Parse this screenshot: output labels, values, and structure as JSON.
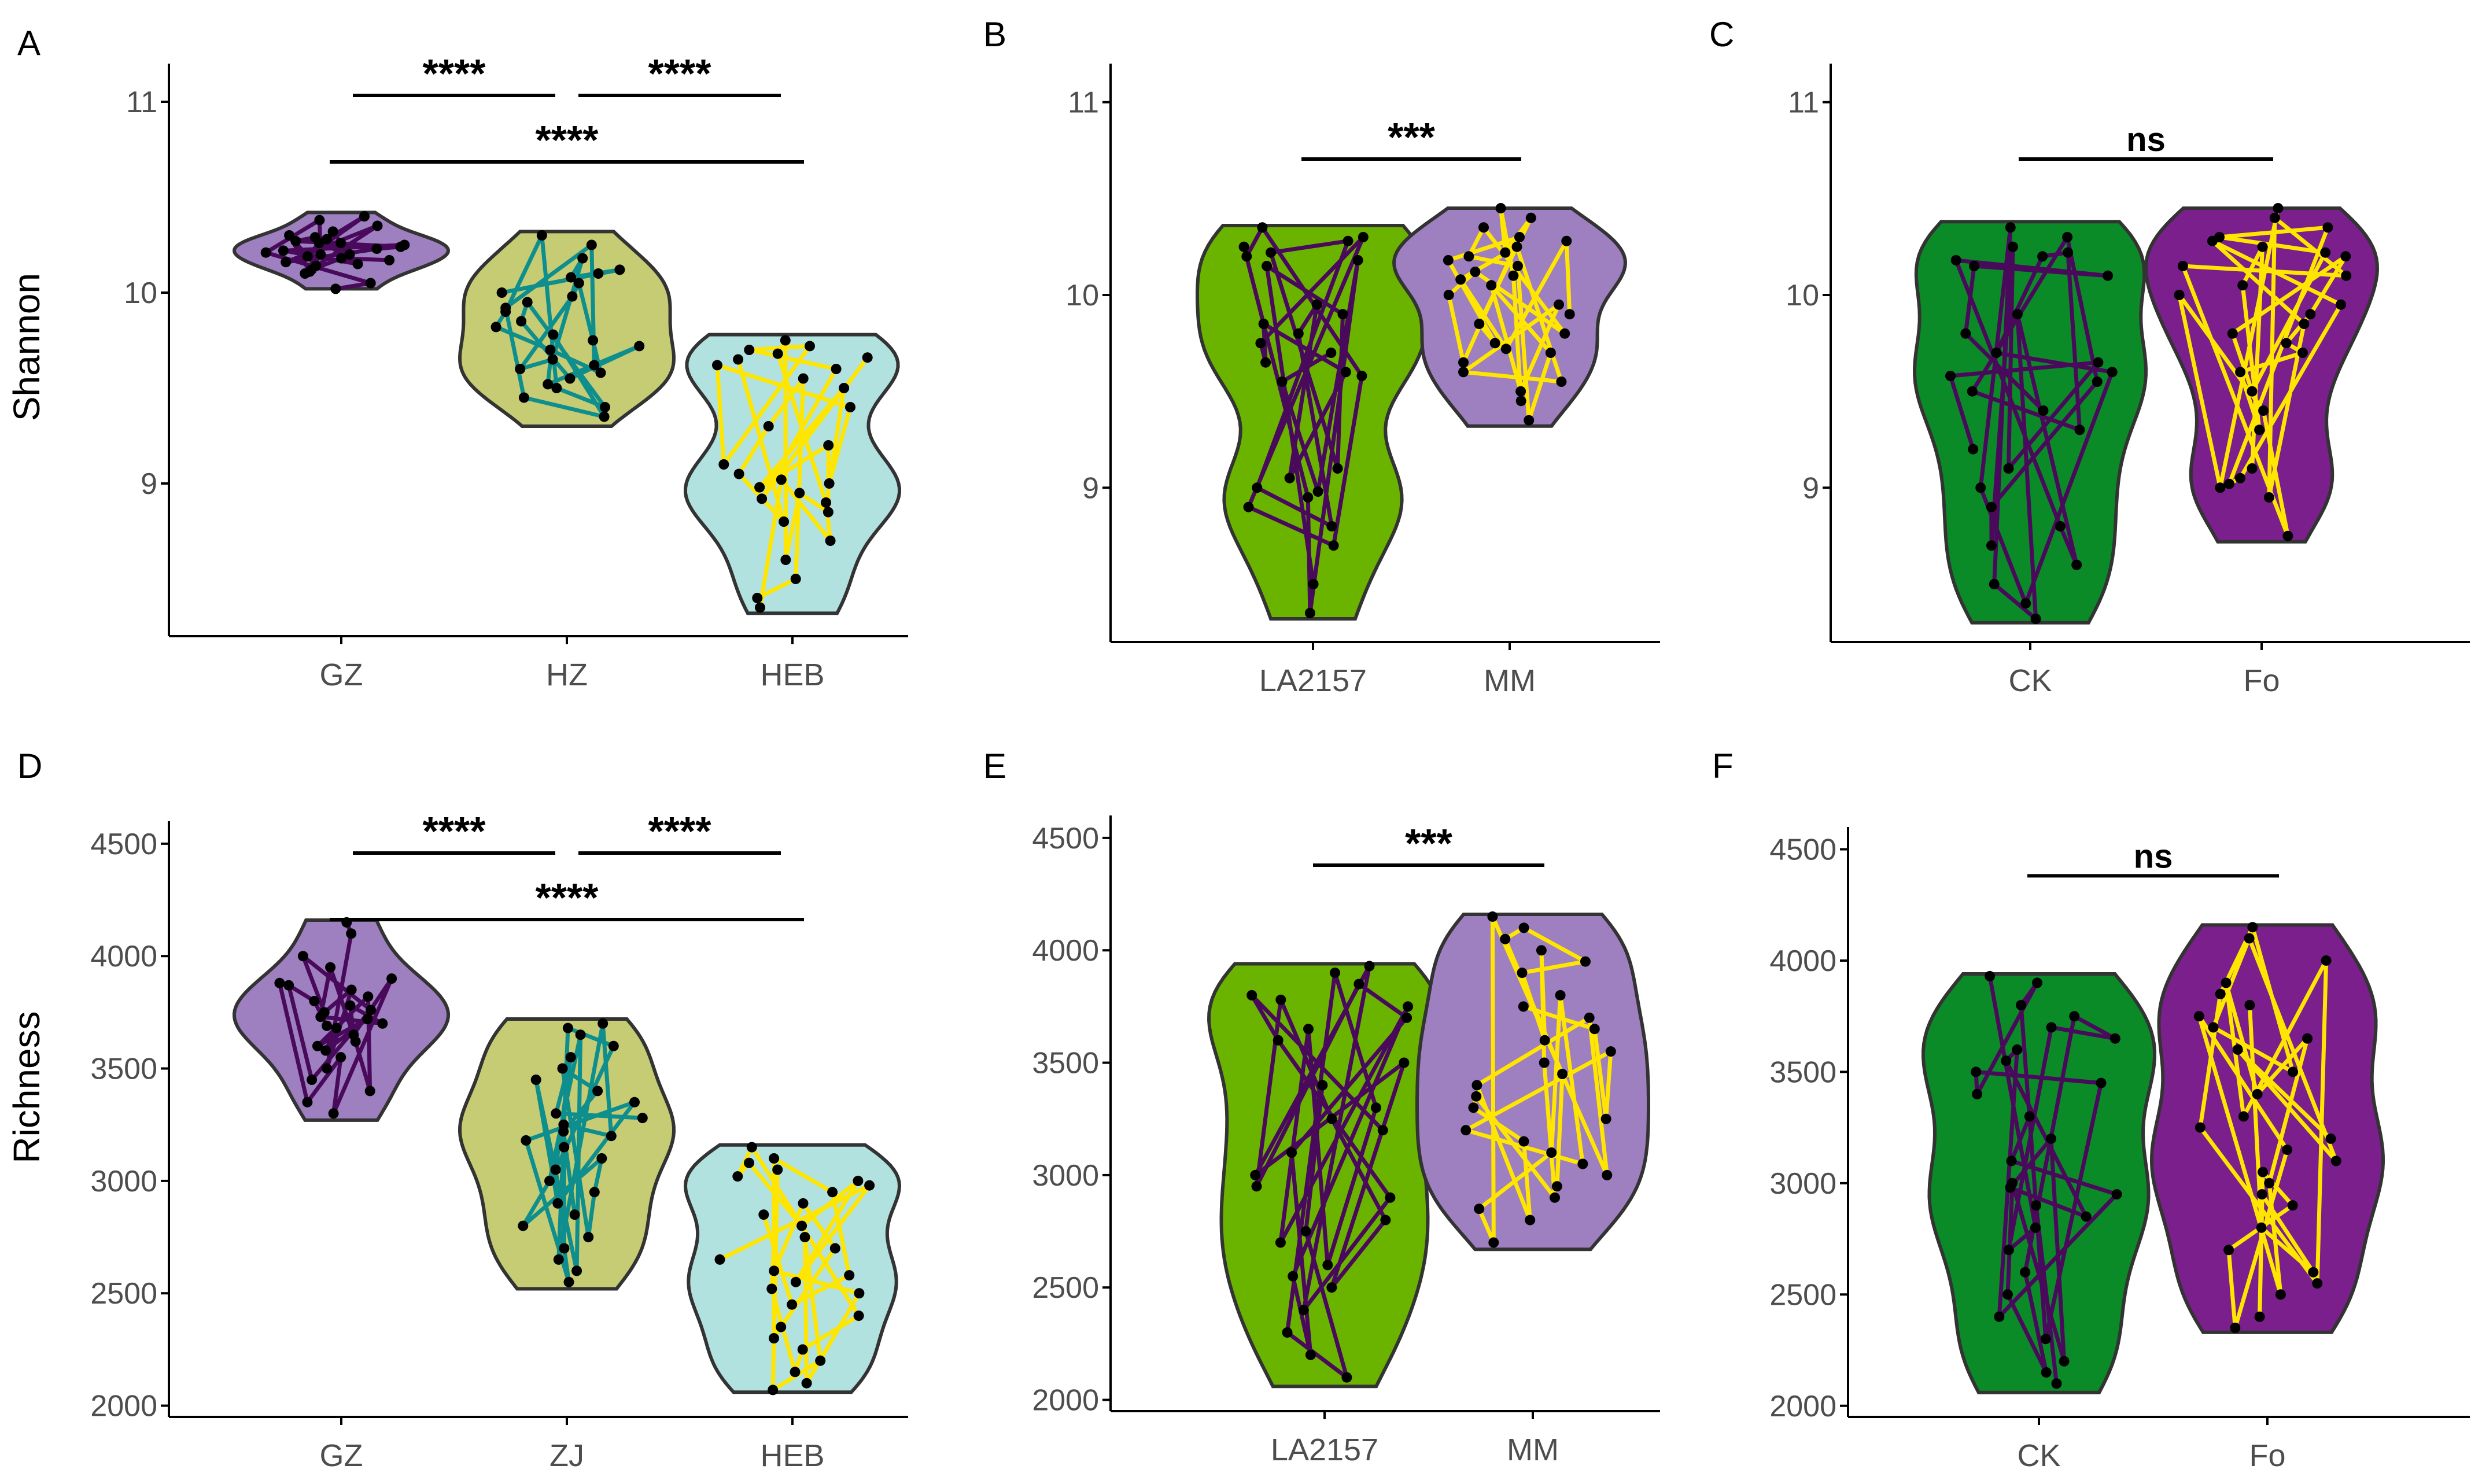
{
  "colors": {
    "axis": "#000000",
    "tick_text": "#4d4d4d",
    "violin_stroke": "#333333",
    "point": "#000000"
  },
  "chart_data": [
    {
      "panel": "A",
      "type": "violin",
      "ylabel": "Shannon",
      "xlabel": "",
      "ylim": [
        8.2,
        11.2
      ],
      "yticks": [
        9,
        10,
        11
      ],
      "categories": [
        "GZ",
        "HZ",
        "HEB"
      ],
      "fills": [
        "#9e7fbf",
        "#c5cc73",
        "#b2e2df"
      ],
      "line_colors": [
        "#4a0a5c",
        "#0f8e8e",
        "#ffe600"
      ],
      "groups": [
        {
          "min": 10.02,
          "max": 10.42,
          "points": [
            10.4,
            10.35,
            10.3,
            10.28,
            10.25,
            10.22,
            10.2,
            10.18,
            10.15,
            10.12,
            10.1,
            10.05,
            10.02,
            10.38,
            10.26,
            10.19,
            10.16,
            10.23,
            10.29,
            10.14,
            10.21,
            10.24,
            10.27,
            10.17,
            10.32,
            10.11,
            10.2,
            10.26
          ]
        },
        {
          "min": 9.3,
          "max": 10.32,
          "points": [
            10.3,
            10.25,
            10.18,
            10.12,
            10.08,
            10.05,
            10.0,
            9.98,
            9.95,
            9.9,
            9.85,
            9.82,
            9.78,
            9.72,
            9.7,
            9.65,
            9.6,
            9.58,
            9.55,
            9.52,
            9.5,
            9.45,
            9.4,
            9.35,
            10.1,
            9.92,
            9.62,
            9.75
          ]
        },
        {
          "min": 8.32,
          "max": 9.78,
          "points": [
            9.75,
            9.72,
            9.7,
            9.68,
            9.65,
            9.62,
            9.6,
            9.55,
            9.5,
            9.4,
            9.3,
            9.05,
            9.02,
            9.0,
            8.98,
            8.95,
            8.92,
            8.9,
            8.85,
            8.8,
            8.7,
            8.6,
            8.5,
            8.4,
            8.35,
            9.1,
            9.2,
            9.66
          ]
        }
      ],
      "significance": [
        {
          "from": 0,
          "to": 1,
          "label": "****",
          "level": 2
        },
        {
          "from": 1,
          "to": 2,
          "label": "****",
          "level": 2
        },
        {
          "from": 0,
          "to": 2,
          "label": "****",
          "level": 1
        }
      ]
    },
    {
      "panel": "B",
      "type": "violin",
      "ylabel": "",
      "xlabel": "",
      "ylim": [
        8.2,
        11.2
      ],
      "yticks": [
        9,
        10,
        11
      ],
      "categories": [
        "LA2157",
        "MM"
      ],
      "fills": [
        "#6ab400",
        "#9e7fbf"
      ],
      "line_colors": [
        "#4a0a5c",
        "#ffe600"
      ],
      "groups": [
        {
          "min": 8.32,
          "max": 10.36,
          "points": [
            10.35,
            10.3,
            10.28,
            10.25,
            10.22,
            10.2,
            10.18,
            10.15,
            9.95,
            9.9,
            9.85,
            9.8,
            9.75,
            9.7,
            9.65,
            9.6,
            9.58,
            9.55,
            9.1,
            9.05,
            9.0,
            8.98,
            8.95,
            8.9,
            8.8,
            8.7,
            8.5,
            8.35
          ]
        },
        {
          "min": 9.32,
          "max": 10.45,
          "points": [
            10.45,
            10.4,
            10.35,
            10.3,
            10.28,
            10.25,
            10.22,
            10.2,
            10.18,
            10.15,
            10.12,
            10.1,
            10.08,
            10.05,
            10.0,
            9.95,
            9.9,
            9.85,
            9.8,
            9.75,
            9.72,
            9.7,
            9.65,
            9.6,
            9.55,
            9.5,
            9.45,
            9.35
          ]
        }
      ],
      "significance": [
        {
          "from": 0,
          "to": 1,
          "label": "***",
          "level": 1
        }
      ]
    },
    {
      "panel": "C",
      "type": "violin",
      "ylabel": "",
      "xlabel": "",
      "ylim": [
        8.2,
        11.2
      ],
      "yticks": [
        9,
        10,
        11
      ],
      "categories": [
        "CK",
        "Fo"
      ],
      "fills": [
        "#0b8a28",
        "#7a1f8c"
      ],
      "line_colors": [
        "#4a0a5c",
        "#ffe600"
      ],
      "groups": [
        {
          "min": 8.3,
          "max": 10.38,
          "points": [
            10.35,
            10.3,
            10.25,
            10.22,
            10.2,
            10.18,
            10.15,
            10.1,
            9.9,
            9.8,
            9.7,
            9.65,
            9.6,
            9.58,
            9.55,
            9.5,
            9.4,
            9.3,
            9.2,
            9.1,
            9.0,
            8.9,
            8.8,
            8.7,
            8.6,
            8.5,
            8.4,
            8.32
          ]
        },
        {
          "min": 8.72,
          "max": 10.45,
          "points": [
            10.45,
            10.4,
            10.35,
            10.3,
            10.28,
            10.25,
            10.22,
            10.2,
            10.15,
            10.1,
            10.05,
            10.0,
            9.95,
            9.9,
            9.85,
            9.8,
            9.75,
            9.7,
            9.6,
            9.5,
            9.4,
            9.3,
            9.1,
            9.05,
            9.02,
            9.0,
            8.95,
            8.75
          ]
        }
      ],
      "significance": [
        {
          "from": 0,
          "to": 1,
          "label": "ns",
          "level": 1
        }
      ]
    },
    {
      "panel": "D",
      "type": "violin",
      "ylabel": "Richness",
      "xlabel": "",
      "ylim": [
        1950,
        4600
      ],
      "yticks": [
        2000,
        2500,
        3000,
        3500,
        4000,
        4500
      ],
      "categories": [
        "GZ",
        "ZJ",
        "HEB"
      ],
      "fills": [
        "#9e7fbf",
        "#c5cc73",
        "#b2e2df"
      ],
      "line_colors": [
        "#4a0a5c",
        "#0f8e8e",
        "#ffe600"
      ],
      "groups": [
        {
          "min": 3270,
          "max": 4160,
          "points": [
            4150,
            4100,
            4000,
            3950,
            3900,
            3880,
            3850,
            3820,
            3800,
            3780,
            3750,
            3730,
            3700,
            3680,
            3650,
            3620,
            3600,
            3580,
            3550,
            3500,
            3450,
            3400,
            3350,
            3300,
            3870,
            3760,
            3690,
            3720
          ]
        },
        {
          "min": 2520,
          "max": 3720,
          "points": [
            3700,
            3680,
            3650,
            3600,
            3550,
            3500,
            3450,
            3400,
            3350,
            3300,
            3250,
            3220,
            3200,
            3180,
            3150,
            3100,
            3050,
            3000,
            2950,
            2900,
            2850,
            2800,
            2750,
            2700,
            2650,
            2600,
            2550,
            3280
          ]
        },
        {
          "min": 2060,
          "max": 3160,
          "points": [
            3150,
            3100,
            3080,
            3050,
            3020,
            3000,
            2980,
            2950,
            2900,
            2850,
            2800,
            2750,
            2700,
            2650,
            2600,
            2580,
            2550,
            2520,
            2500,
            2450,
            2400,
            2350,
            2300,
            2250,
            2200,
            2150,
            2100,
            2070
          ]
        }
      ],
      "significance": [
        {
          "from": 0,
          "to": 1,
          "label": "****",
          "level": 2
        },
        {
          "from": 1,
          "to": 2,
          "label": "****",
          "level": 2
        },
        {
          "from": 0,
          "to": 2,
          "label": "****",
          "level": 1
        }
      ]
    },
    {
      "panel": "E",
      "type": "violin",
      "ylabel": "",
      "xlabel": "",
      "ylim": [
        1950,
        4600
      ],
      "yticks": [
        2000,
        2500,
        3000,
        3500,
        4000,
        4500
      ],
      "categories": [
        "LA2157",
        "MM"
      ],
      "fills": [
        "#6ab400",
        "#9e7fbf"
      ],
      "line_colors": [
        "#4a0a5c",
        "#ffe600"
      ],
      "groups": [
        {
          "min": 2060,
          "max": 3940,
          "points": [
            3930,
            3900,
            3850,
            3800,
            3780,
            3750,
            3700,
            3650,
            3600,
            3500,
            3400,
            3300,
            3250,
            3200,
            3100,
            3000,
            2950,
            2900,
            2800,
            2750,
            2700,
            2600,
            2550,
            2500,
            2400,
            2300,
            2200,
            2100
          ]
        },
        {
          "min": 2670,
          "max": 4160,
          "points": [
            4150,
            4100,
            4050,
            4000,
            3950,
            3900,
            3800,
            3750,
            3700,
            3650,
            3600,
            3550,
            3500,
            3450,
            3400,
            3350,
            3300,
            3250,
            3200,
            3150,
            3100,
            3050,
            3000,
            2950,
            2900,
            2850,
            2800,
            2700
          ]
        }
      ],
      "significance": [
        {
          "from": 0,
          "to": 1,
          "label": "***",
          "level": 1
        }
      ]
    },
    {
      "panel": "F",
      "type": "violin",
      "ylabel": "",
      "xlabel": "",
      "ylim": [
        1950,
        4600
      ],
      "yticks": [
        2000,
        2500,
        3000,
        3500,
        4000,
        4500
      ],
      "categories": [
        "CK",
        "Fo"
      ],
      "fills": [
        "#0b8a28",
        "#7a1f8c"
      ],
      "line_colors": [
        "#4a0a5c",
        "#ffe600"
      ],
      "groups": [
        {
          "min": 2060,
          "max": 3940,
          "points": [
            3930,
            3900,
            3800,
            3750,
            3700,
            3650,
            3600,
            3500,
            3400,
            3300,
            3200,
            3100,
            3000,
            2980,
            2950,
            2900,
            2850,
            2800,
            2700,
            2600,
            2500,
            2400,
            2300,
            2200,
            2150,
            2100,
            3550,
            3450
          ]
        },
        {
          "min": 2330,
          "max": 4160,
          "points": [
            4150,
            4100,
            4000,
            3900,
            3850,
            3800,
            3750,
            3700,
            3650,
            3600,
            3500,
            3400,
            3300,
            3250,
            3200,
            3150,
            3100,
            3050,
            3000,
            2950,
            2900,
            2800,
            2700,
            2600,
            2550,
            2500,
            2400,
            2350
          ]
        }
      ],
      "significance": [
        {
          "from": 0,
          "to": 1,
          "label": "ns",
          "level": 1
        }
      ]
    }
  ]
}
